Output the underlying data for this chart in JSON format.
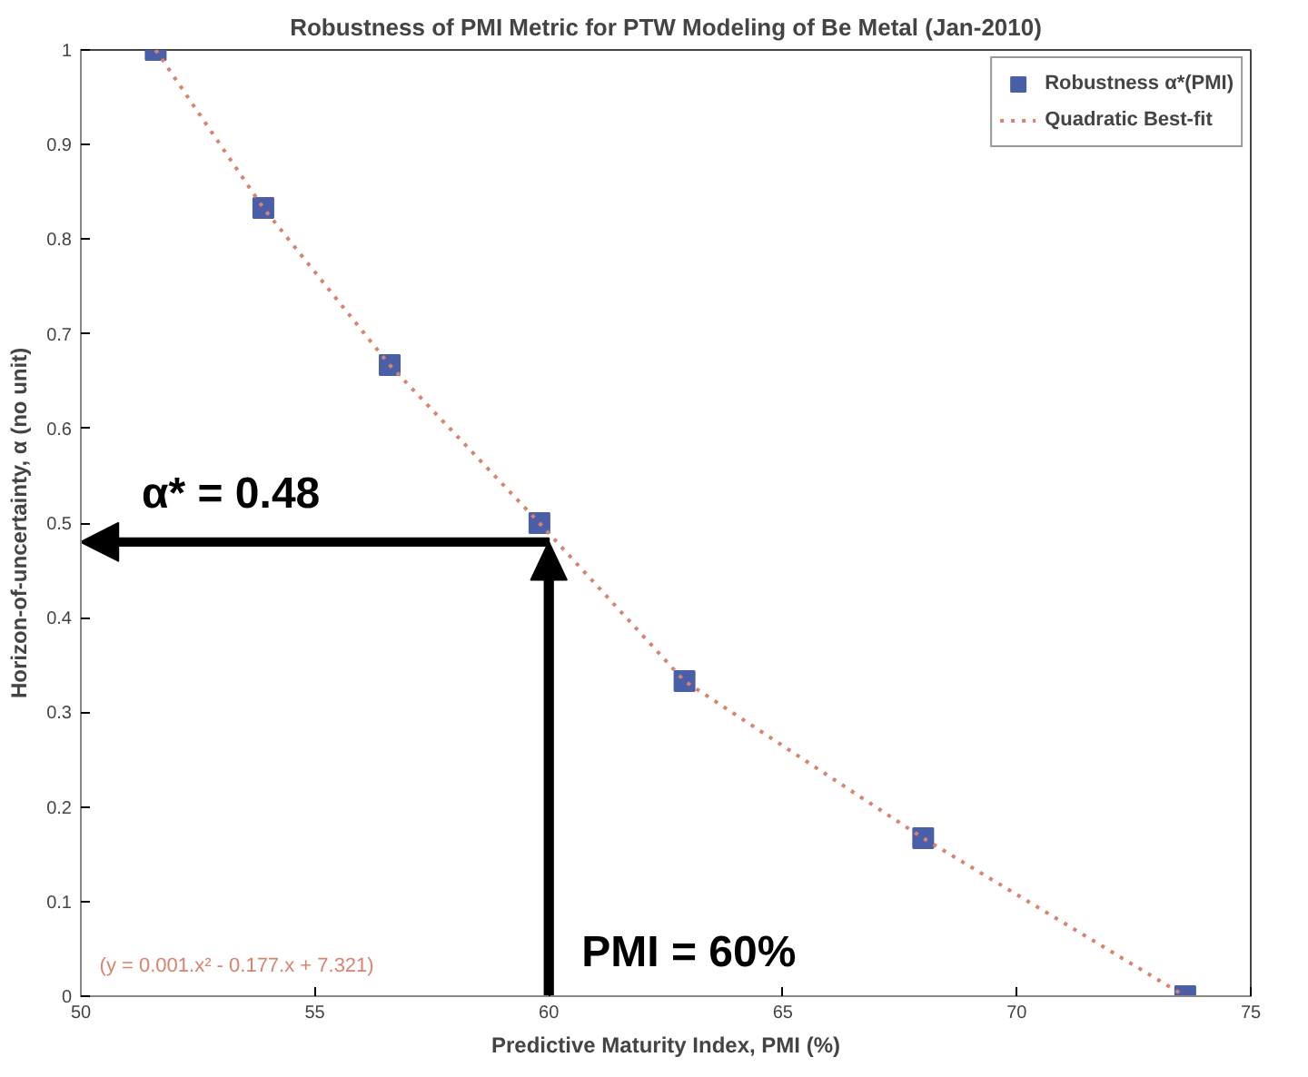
{
  "chart_data": {
    "type": "scatter",
    "title": "Robustness of PMI Metric for PTW Modeling of Be Metal (Jan-2010)",
    "xlabel": "Predictive Maturity Index, PMI (%)",
    "ylabel": "Horizon-of-uncertainty, α (no unit)",
    "x": [
      51.6,
      53.9,
      56.6,
      59.8,
      62.9,
      68.0,
      73.6
    ],
    "series": [
      {
        "name": "Robustness α*(PMI)",
        "color": "#4a5fa8",
        "marker": "square",
        "values": [
          1.0,
          0.833,
          0.667,
          0.5,
          0.333,
          0.167,
          0.0
        ]
      },
      {
        "name": "Quadratic Best-fit",
        "type": "line",
        "color": "#d9826e",
        "line_style": "dotted",
        "x": [
          51.6,
          53.9,
          56.6,
          59.8,
          62.9,
          68.0,
          73.6
        ],
        "values": [
          1.0,
          0.833,
          0.667,
          0.5,
          0.333,
          0.167,
          0.0
        ]
      }
    ],
    "annotations": [
      "(y = 0.001.x² - 0.177.x + 7.321)"
    ],
    "ref_lines": [
      {
        "axis": "y",
        "value": 0.48,
        "label": "α* = 0.48",
        "color": "#000000"
      },
      {
        "axis": "x",
        "value": 60,
        "label": "PMI = 60%",
        "color": "#000000"
      }
    ],
    "xlim": [
      50,
      75
    ],
    "xticks": [
      50,
      55,
      60,
      65,
      70,
      75
    ],
    "ylim": [
      0,
      1
    ],
    "yticks": [
      0,
      0.1,
      0.2,
      0.3,
      0.4,
      0.5,
      0.6,
      0.7,
      0.8,
      0.9,
      1
    ],
    "grid": false,
    "legend": "top right"
  }
}
